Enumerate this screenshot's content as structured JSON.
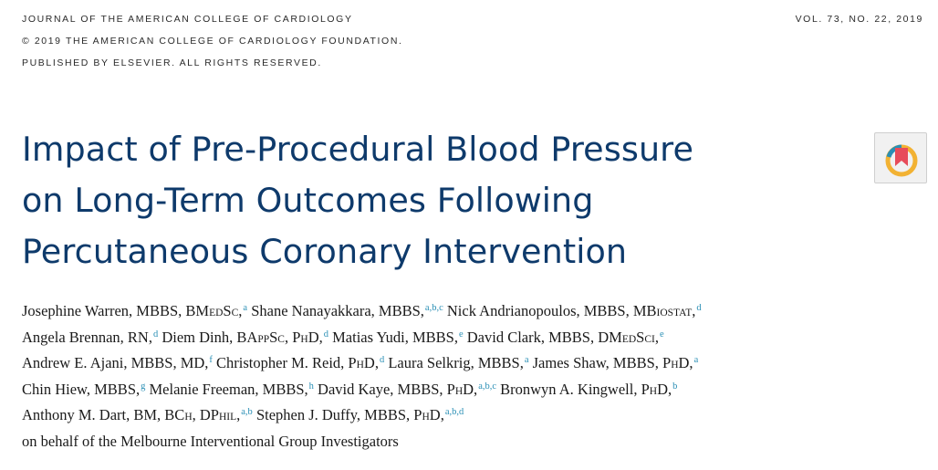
{
  "header": {
    "journal": "JOURNAL OF THE AMERICAN COLLEGE OF CARDIOLOGY",
    "copyright": "© 2019 THE AMERICAN COLLEGE OF CARDIOLOGY FOUNDATION.",
    "publisher": "PUBLISHED BY ELSEVIER. ALL RIGHTS RESERVED.",
    "volume": "VOL. 73, NO. 22, 2019"
  },
  "title_lines": [
    "Impact of Pre-Procedural Blood Pressure",
    "on Long-Term Outcomes Following",
    "Percutaneous Coronary Intervention"
  ],
  "badge_icon": "check-for-updates-icon",
  "colors": {
    "title": "#0e3a6b",
    "affiliation": "#2a8fb5"
  },
  "authors": {
    "a1": "Josephine Warren, MBBS, BM",
    "a1_deg": "ED",
    "a1_deg2": "S",
    "a1_deg3": "C",
    "a1_tail": ",",
    "a1_aff": "a",
    "a2": " Shane Nanayakkara, MBBS,",
    "a2_aff": "a,b,c",
    "a3": " Nick Andrianopoulos, MBBS, MB",
    "a3_deg": "IOSTAT",
    "a3_tail": ",",
    "a3_aff": "d",
    "a4": "Angela Brennan, RN,",
    "a4_aff": "d",
    "a5": " Diem Dinh, BA",
    "a5_deg": "PP",
    "a5_deg2": "S",
    "a5_deg3": "C",
    "a5_mid": ", P",
    "a5_deg4": "H",
    "a5_tail": "D,",
    "a5_aff": "d",
    "a6": " Matias Yudi, MBBS,",
    "a6_aff": "e",
    "a7": " David Clark, MBBS, DM",
    "a7_deg": "ED",
    "a7_deg2": "S",
    "a7_deg3": "CI",
    "a7_tail": ",",
    "a7_aff": "e",
    "a8": "Andrew E. Ajani, MBBS, MD,",
    "a8_aff": "f",
    "a9": " Christopher M. Reid, P",
    "a9_deg": "H",
    "a9_tail": "D,",
    "a9_aff": "d",
    "a10": " Laura Selkrig, MBBS,",
    "a10_aff": "a",
    "a11": " James Shaw, MBBS, P",
    "a11_deg": "H",
    "a11_tail": "D,",
    "a11_aff": "a",
    "a12": "Chin Hiew, MBBS,",
    "a12_aff": "g",
    "a13": " Melanie Freeman, MBBS,",
    "a13_aff": "h",
    "a14": " David Kaye, MBBS, P",
    "a14_deg": "H",
    "a14_tail": "D,",
    "a14_aff": "a,b,c",
    "a15": " Bronwyn A. Kingwell, P",
    "a15_deg": "H",
    "a15_tail": "D,",
    "a15_aff": "b",
    "a16": "Anthony M. Dart, BM, BC",
    "a16_deg": "H",
    "a16_mid": ", DP",
    "a16_deg2": "HIL",
    "a16_tail": ",",
    "a16_aff": "a,b",
    "a17": " Stephen J. Duffy, MBBS, P",
    "a17_deg": "H",
    "a17_tail": "D,",
    "a17_aff": "a,b,d",
    "group": "on behalf of the Melbourne Interventional Group Investigators"
  }
}
